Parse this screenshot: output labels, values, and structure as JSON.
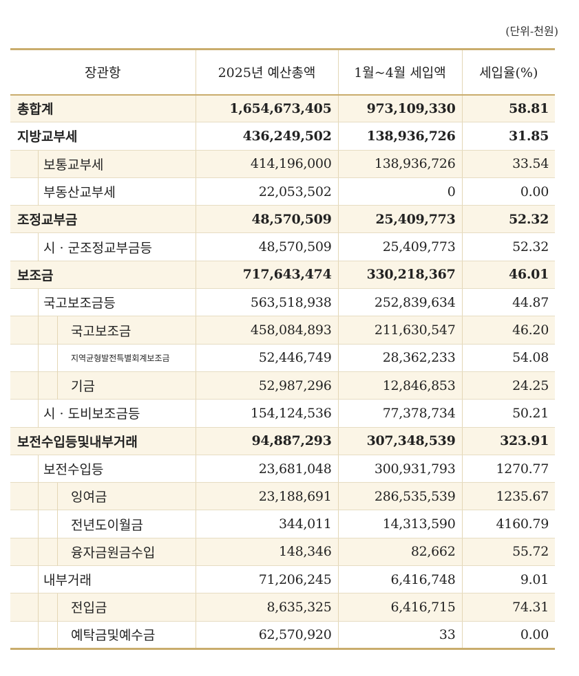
{
  "unit_label": "(단위-천원)",
  "headers": [
    "장관항",
    "2025년 예산총액",
    "1월~4월 세입액",
    "세입율(%)"
  ],
  "rows": [
    {
      "label": "총합계",
      "budget": "1,654,673,405",
      "revenue": "973,109,330",
      "rate": "58.81"
    },
    {
      "label": "지방교부세",
      "budget": "436,249,502",
      "revenue": "138,936,726",
      "rate": "31.85"
    },
    {
      "label": "보통교부세",
      "budget": "414,196,000",
      "revenue": "138,936,726",
      "rate": "33.54"
    },
    {
      "label": "부동산교부세",
      "budget": "22,053,502",
      "revenue": "0",
      "rate": "0.00"
    },
    {
      "label": "조정교부금",
      "budget": "48,570,509",
      "revenue": "25,409,773",
      "rate": "52.32"
    },
    {
      "label": "시 · 군조정교부금등",
      "budget": "48,570,509",
      "revenue": "25,409,773",
      "rate": "52.32"
    },
    {
      "label": "보조금",
      "budget": "717,643,474",
      "revenue": "330,218,367",
      "rate": "46.01"
    },
    {
      "label": "국고보조금등",
      "budget": "563,518,938",
      "revenue": "252,839,634",
      "rate": "44.87"
    },
    {
      "label": "국고보조금",
      "budget": "458,084,893",
      "revenue": "211,630,547",
      "rate": "46.20"
    },
    {
      "label": "지역균형발전특별회계보조금",
      "budget": "52,446,749",
      "revenue": "28,362,233",
      "rate": "54.08"
    },
    {
      "label": "기금",
      "budget": "52,987,296",
      "revenue": "12,846,853",
      "rate": "24.25"
    },
    {
      "label": "시 · 도비보조금등",
      "budget": "154,124,536",
      "revenue": "77,378,734",
      "rate": "50.21"
    },
    {
      "label": "보전수입등및내부거래",
      "budget": "94,887,293",
      "revenue": "307,348,539",
      "rate": "323.91"
    },
    {
      "label": "보전수입등",
      "budget": "23,681,048",
      "revenue": "300,931,793",
      "rate": "1270.77"
    },
    {
      "label": "잉여금",
      "budget": "23,188,691",
      "revenue": "286,535,539",
      "rate": "1235.67"
    },
    {
      "label": "전년도이월금",
      "budget": "344,011",
      "revenue": "14,313,590",
      "rate": "4160.79"
    },
    {
      "label": "융자금원금수입",
      "budget": "148,346",
      "revenue": "82,662",
      "rate": "55.72"
    },
    {
      "label": "내부거래",
      "budget": "71,206,245",
      "revenue": "6,416,748",
      "rate": "9.01"
    },
    {
      "label": "전입금",
      "budget": "8,635,325",
      "revenue": "6,416,715",
      "rate": "74.31"
    },
    {
      "label": "예탁금및예수금",
      "budget": "62,570,920",
      "revenue": "33",
      "rate": "0.00"
    }
  ]
}
